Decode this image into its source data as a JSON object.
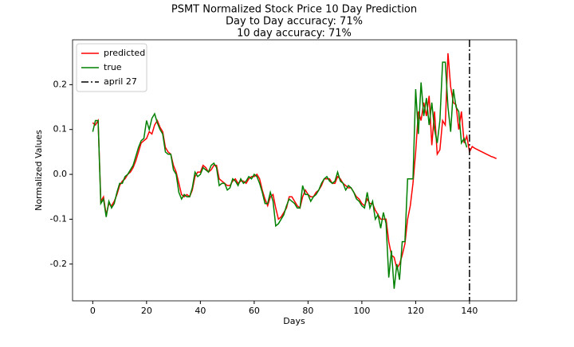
{
  "chart_data": {
    "type": "line",
    "title": "PSMT Normalized Stock Price 10 Day Prediction",
    "subtitles": [
      "Day to Day accuracy: 71%",
      "10 day accuracy: 71%"
    ],
    "x_label": "Days",
    "y_label": "Normalized Values",
    "x": [
      0,
      1,
      2,
      3,
      4,
      5,
      6,
      7,
      8,
      9,
      10,
      11,
      12,
      13,
      14,
      15,
      16,
      17,
      18,
      19,
      20,
      21,
      22,
      23,
      24,
      25,
      26,
      27,
      28,
      29,
      30,
      31,
      32,
      33,
      34,
      35,
      36,
      37,
      38,
      39,
      40,
      41,
      42,
      43,
      44,
      45,
      46,
      47,
      48,
      49,
      50,
      51,
      52,
      53,
      54,
      55,
      56,
      57,
      58,
      59,
      60,
      61,
      62,
      63,
      64,
      65,
      66,
      67,
      68,
      69,
      70,
      71,
      72,
      73,
      74,
      75,
      76,
      77,
      78,
      79,
      80,
      81,
      82,
      83,
      84,
      85,
      86,
      87,
      88,
      89,
      90,
      91,
      92,
      93,
      94,
      95,
      96,
      97,
      98,
      99,
      100,
      101,
      102,
      103,
      104,
      105,
      106,
      107,
      108,
      109,
      110,
      111,
      112,
      113,
      114,
      115,
      116,
      117,
      118,
      119,
      120,
      121,
      122,
      123,
      124,
      125,
      126,
      127,
      128,
      129,
      130,
      131,
      132,
      133,
      134,
      135,
      136,
      137,
      138,
      139,
      140,
      141,
      142,
      143,
      144,
      145,
      146,
      147,
      148,
      149,
      150
    ],
    "series": [
      {
        "name": "predicted",
        "color": "#ff0000",
        "values": [
          0.115,
          0.11,
          0.12,
          -0.06,
          -0.05,
          -0.09,
          -0.065,
          -0.07,
          -0.06,
          -0.045,
          -0.025,
          -0.015,
          -0.01,
          0.0,
          0.005,
          0.015,
          0.03,
          0.05,
          0.07,
          0.075,
          0.08,
          0.095,
          0.09,
          0.11,
          0.12,
          0.105,
          0.095,
          0.06,
          0.05,
          0.045,
          0.02,
          0.005,
          -0.02,
          -0.045,
          -0.05,
          -0.045,
          -0.05,
          -0.035,
          -0.005,
          0.005,
          0.005,
          0.02,
          0.015,
          0.005,
          0.01,
          0.02,
          0.02,
          -0.01,
          -0.015,
          -0.02,
          -0.025,
          -0.025,
          -0.015,
          -0.01,
          -0.02,
          -0.015,
          -0.015,
          -0.02,
          -0.01,
          -0.005,
          -0.005,
          0.0,
          -0.01,
          -0.035,
          -0.055,
          -0.07,
          -0.05,
          -0.045,
          -0.075,
          -0.1,
          -0.095,
          -0.085,
          -0.075,
          -0.05,
          -0.05,
          -0.06,
          -0.07,
          -0.075,
          -0.05,
          -0.035,
          -0.045,
          -0.05,
          -0.05,
          -0.04,
          -0.035,
          -0.025,
          -0.01,
          -0.01,
          -0.01,
          -0.02,
          -0.02,
          -0.005,
          -0.01,
          -0.02,
          -0.025,
          -0.03,
          -0.03,
          -0.04,
          -0.05,
          -0.055,
          -0.065,
          -0.07,
          -0.055,
          -0.065,
          -0.065,
          -0.08,
          -0.09,
          -0.1,
          -0.1,
          -0.1,
          -0.15,
          -0.18,
          -0.185,
          -0.21,
          -0.2,
          -0.18,
          -0.155,
          -0.1,
          -0.07,
          -0.02,
          0.05,
          0.14,
          0.12,
          0.16,
          0.13,
          0.175,
          0.065,
          0.14,
          0.045,
          0.055,
          0.12,
          0.11,
          0.27,
          0.195,
          0.16,
          0.155,
          0.1,
          0.14,
          0.07,
          0.085,
          0.05,
          0.062,
          0.058,
          0.055,
          0.052,
          0.049,
          0.046,
          0.043,
          0.04,
          0.038,
          0.035
        ]
      },
      {
        "name": "true",
        "color": "#008000",
        "values": [
          0.095,
          0.12,
          0.12,
          -0.065,
          -0.055,
          -0.095,
          -0.06,
          -0.075,
          -0.065,
          -0.04,
          -0.02,
          -0.02,
          -0.005,
          0.0,
          0.01,
          0.02,
          0.04,
          0.06,
          0.075,
          0.08,
          0.12,
          0.1,
          0.125,
          0.135,
          0.115,
          0.1,
          0.09,
          0.05,
          0.045,
          0.045,
          0.01,
          0.0,
          -0.04,
          -0.055,
          -0.045,
          -0.05,
          -0.05,
          -0.03,
          0.005,
          -0.005,
          0.0,
          0.015,
          0.01,
          0.005,
          0.02,
          0.025,
          0.015,
          -0.025,
          -0.02,
          -0.02,
          -0.035,
          -0.03,
          -0.01,
          -0.015,
          -0.025,
          -0.01,
          -0.02,
          -0.015,
          -0.005,
          -0.01,
          0.0,
          -0.005,
          -0.02,
          -0.04,
          -0.065,
          -0.065,
          -0.04,
          -0.06,
          -0.115,
          -0.11,
          -0.1,
          -0.09,
          -0.07,
          -0.055,
          -0.06,
          -0.065,
          -0.075,
          -0.075,
          -0.025,
          -0.045,
          -0.045,
          -0.06,
          -0.05,
          -0.045,
          -0.035,
          -0.02,
          -0.01,
          -0.005,
          -0.015,
          -0.02,
          -0.015,
          0.005,
          -0.015,
          -0.02,
          -0.035,
          -0.025,
          -0.03,
          -0.04,
          -0.055,
          -0.06,
          -0.07,
          -0.075,
          -0.04,
          -0.075,
          -0.06,
          -0.1,
          -0.09,
          -0.12,
          -0.085,
          -0.11,
          -0.23,
          -0.17,
          -0.255,
          -0.2,
          -0.235,
          -0.15,
          -0.15,
          -0.01,
          -0.01,
          -0.01,
          0.19,
          0.09,
          0.205,
          0.13,
          0.17,
          0.11,
          0.16,
          0.1,
          0.07,
          0.12,
          0.25,
          0.25,
          0.15,
          0.095,
          0.19,
          0.15,
          0.14,
          0.07,
          0.08,
          0.06,
          null,
          null,
          null,
          null,
          null,
          null,
          null,
          null,
          null,
          null,
          null
        ]
      }
    ],
    "vline": {
      "name": "april 27",
      "x": 140,
      "color": "#000000",
      "style": "dashdot"
    },
    "xlim": [
      -7.5,
      157.5
    ],
    "ylim": [
      -0.282,
      0.3
    ],
    "xticks": [
      0,
      20,
      40,
      60,
      80,
      100,
      120,
      140
    ],
    "yticks": [
      -0.2,
      -0.1,
      {
        "value": 0,
        "label": "0.0"
      },
      0.1,
      0.2
    ],
    "legend": "upper left"
  }
}
